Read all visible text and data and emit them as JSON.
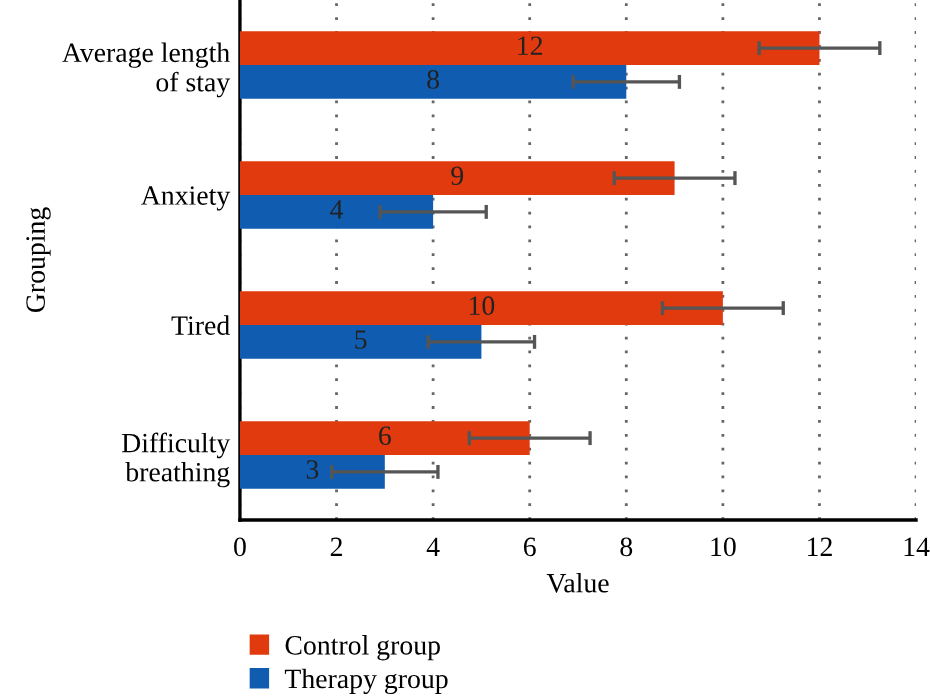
{
  "chart_data": {
    "type": "bar",
    "orientation": "horizontal",
    "xlabel": "Value",
    "ylabel": "Grouping",
    "categories": [
      "Average length\nof stay",
      "Anxiety",
      "Tired",
      "Difficulty\nbreathing"
    ],
    "series": [
      {
        "name": "Control group",
        "color": "#e03a0e",
        "values": [
          12,
          9,
          10,
          6
        ],
        "errors": [
          1.25,
          1.25,
          1.25,
          1.25
        ]
      },
      {
        "name": "Therapy group",
        "color": "#0f5cb0",
        "values": [
          8,
          4,
          5,
          3
        ],
        "errors": [
          1.1,
          1.1,
          1.1,
          1.1
        ]
      }
    ],
    "xlim": [
      0,
      14
    ],
    "xticks": [
      0,
      2,
      4,
      6,
      8,
      10,
      12,
      14
    ],
    "grid": "x",
    "legend": "bottom",
    "data_labels": true
  }
}
